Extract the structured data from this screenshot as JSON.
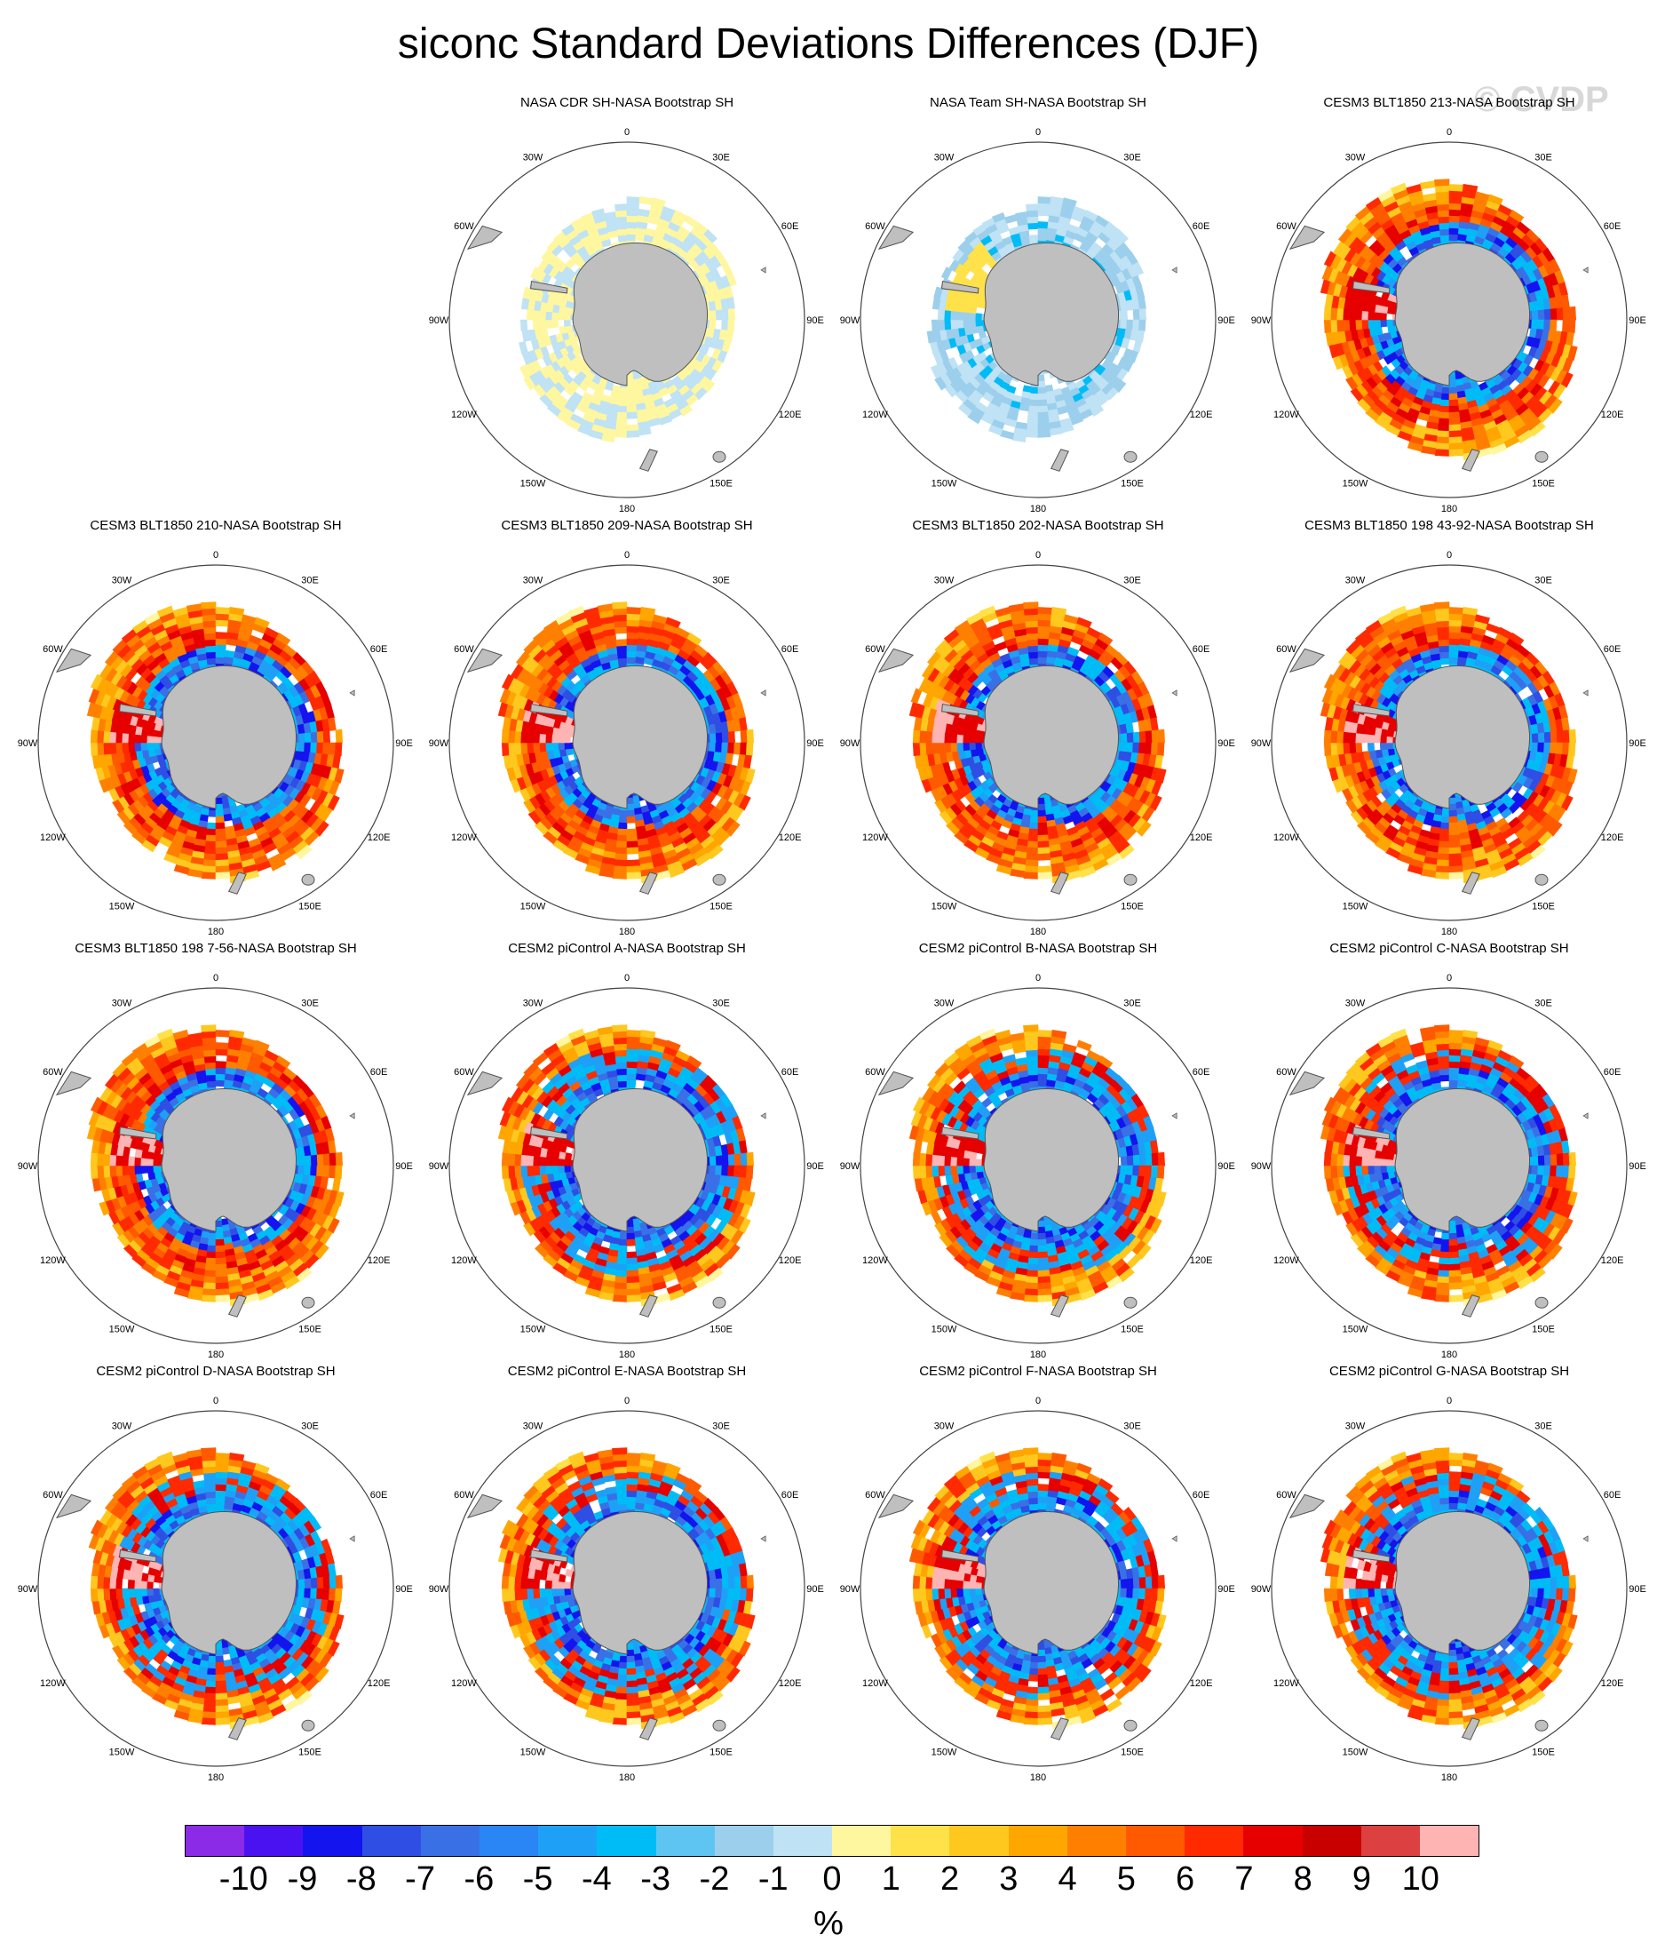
{
  "title": "siconc Standard Deviations Differences (DJF)",
  "watermark": "© CVDP",
  "panels": [
    {
      "row": 0,
      "col": 1,
      "title": "NASA CDR SH-NASA Bootstrap SH",
      "pattern": "obs_cdr"
    },
    {
      "row": 0,
      "col": 2,
      "title": "NASA Team SH-NASA Bootstrap SH",
      "pattern": "obs_team"
    },
    {
      "row": 0,
      "col": 3,
      "title": "CESM3 BLT1850 213-NASA Bootstrap SH",
      "pattern": "model"
    },
    {
      "row": 1,
      "col": 0,
      "title": "CESM3 BLT1850 210-NASA Bootstrap SH",
      "pattern": "model"
    },
    {
      "row": 1,
      "col": 1,
      "title": "CESM3 BLT1850 209-NASA Bootstrap SH",
      "pattern": "model"
    },
    {
      "row": 1,
      "col": 2,
      "title": "CESM3 BLT1850 202-NASA Bootstrap SH",
      "pattern": "model"
    },
    {
      "row": 1,
      "col": 3,
      "title": "CESM3 BLT1850 198 43-92-NASA Bootstrap SH",
      "pattern": "model"
    },
    {
      "row": 2,
      "col": 0,
      "title": "CESM3 BLT1850 198 7-56-NASA Bootstrap SH",
      "pattern": "model"
    },
    {
      "row": 2,
      "col": 1,
      "title": "CESM2 piControl A-NASA Bootstrap SH",
      "pattern": "model2"
    },
    {
      "row": 2,
      "col": 2,
      "title": "CESM2 piControl B-NASA Bootstrap SH",
      "pattern": "model2"
    },
    {
      "row": 2,
      "col": 3,
      "title": "CESM2 piControl C-NASA Bootstrap SH",
      "pattern": "model2"
    },
    {
      "row": 3,
      "col": 0,
      "title": "CESM2 piControl D-NASA Bootstrap SH",
      "pattern": "model2"
    },
    {
      "row": 3,
      "col": 1,
      "title": "CESM2 piControl E-NASA Bootstrap SH",
      "pattern": "model2"
    },
    {
      "row": 3,
      "col": 2,
      "title": "CESM2 piControl F-NASA Bootstrap SH",
      "pattern": "model2"
    },
    {
      "row": 3,
      "col": 3,
      "title": "CESM2 piControl G-NASA Bootstrap SH",
      "pattern": "model2"
    }
  ],
  "longitude_labels": [
    {
      "lon": 0,
      "text": "0"
    },
    {
      "lon": 30,
      "text": "30E"
    },
    {
      "lon": 60,
      "text": "60E"
    },
    {
      "lon": 90,
      "text": "90E"
    },
    {
      "lon": 120,
      "text": "120E"
    },
    {
      "lon": 150,
      "text": "150E"
    },
    {
      "lon": 180,
      "text": "180"
    },
    {
      "lon": -150,
      "text": "150W"
    },
    {
      "lon": -120,
      "text": "120W"
    },
    {
      "lon": -90,
      "text": "90W"
    },
    {
      "lon": -60,
      "text": "60W"
    },
    {
      "lon": -30,
      "text": "30W"
    }
  ],
  "colorbar": {
    "colors": [
      "#8b2be8",
      "#4a12f0",
      "#1414ee",
      "#2f4fe4",
      "#3a70e6",
      "#2a86f4",
      "#1ea0f6",
      "#00bcf6",
      "#5ec4f2",
      "#9ccfec",
      "#bfe2f4",
      "#fff6a0",
      "#ffe14a",
      "#ffc81e",
      "#ffa600",
      "#ff8000",
      "#ff5a00",
      "#ff2a00",
      "#e60000",
      "#c80000",
      "#dc4040",
      "#ffb4b4"
    ],
    "labels": [
      "-10",
      "-9",
      "-8",
      "-7",
      "-6",
      "-5",
      "-4",
      "-3",
      "-2",
      "-1",
      "0",
      "1",
      "2",
      "3",
      "4",
      "5",
      "6",
      "7",
      "8",
      "9",
      "10"
    ],
    "unit": "%"
  },
  "map_colors": {
    "land": "#bfbfbf",
    "land_outline": "#555555",
    "frame": "#444444"
  }
}
